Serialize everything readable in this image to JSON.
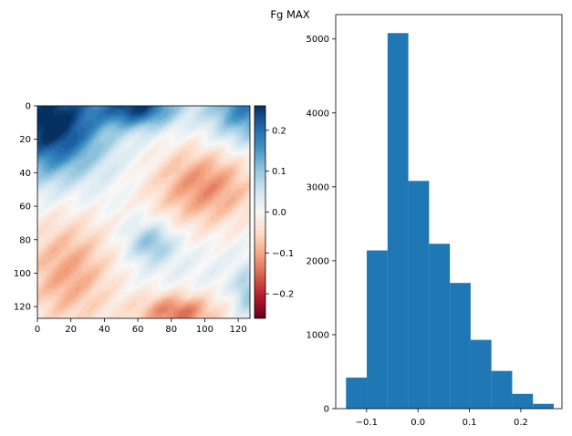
{
  "suptitle": "Fg MAX",
  "chart_data": [
    {
      "type": "heatmap",
      "title": "",
      "grid_size": [
        128,
        128
      ],
      "colormap": "RdBu",
      "xlim": [
        0,
        127
      ],
      "ylim": [
        127,
        0
      ],
      "x_ticks": [
        0,
        20,
        40,
        60,
        80,
        100,
        120
      ],
      "y_ticks": [
        0,
        20,
        40,
        60,
        80,
        100,
        120
      ],
      "x_tick_labels": [
        "0",
        "20",
        "40",
        "60",
        "80",
        "100",
        "120"
      ],
      "y_tick_labels": [
        "0",
        "20",
        "40",
        "60",
        "80",
        "100",
        "120"
      ],
      "colorbar": {
        "vmin": -0.26,
        "vmax": 0.26,
        "ticks": [
          0.2,
          0.1,
          0.0,
          -0.1,
          -0.2
        ],
        "tick_labels": [
          "0.2",
          "0.1",
          "0.0",
          "−0.1",
          "−0.2"
        ]
      }
    },
    {
      "type": "bar",
      "title": "",
      "xlabel": "",
      "ylabel": "",
      "color": "#1f77b4",
      "bin_edges": [
        -0.14,
        -0.0996,
        -0.0592,
        -0.0188,
        0.0216,
        0.062,
        0.1024,
        0.1428,
        0.1832,
        0.2236,
        0.264
      ],
      "values": [
        420,
        2140,
        5080,
        3080,
        2230,
        1700,
        930,
        510,
        200,
        65
      ],
      "xlim": [
        -0.16,
        0.28
      ],
      "ylim": [
        0,
        5330
      ],
      "x_ticks": [
        -0.1,
        0.0,
        0.1,
        0.2
      ],
      "x_tick_labels": [
        "−0.1",
        "0.0",
        "0.1",
        "0.2"
      ],
      "y_ticks": [
        0,
        1000,
        2000,
        3000,
        4000,
        5000
      ],
      "y_tick_labels": [
        "0",
        "1000",
        "2000",
        "3000",
        "4000",
        "5000"
      ]
    }
  ]
}
